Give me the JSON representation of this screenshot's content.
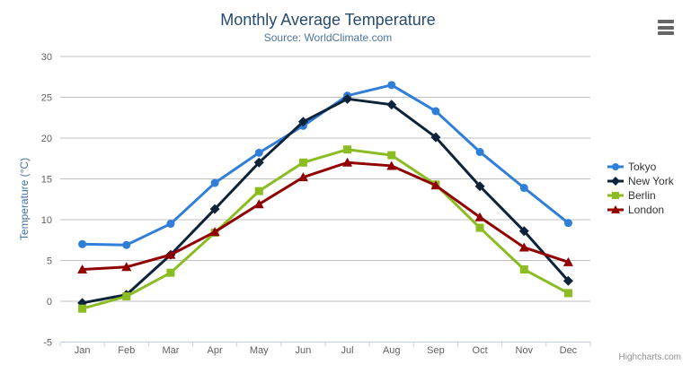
{
  "chart_data": {
    "type": "line",
    "title": "Monthly Average Temperature",
    "subtitle": "Source: WorldClimate.com",
    "categories": [
      "Jan",
      "Feb",
      "Mar",
      "Apr",
      "May",
      "Jun",
      "Jul",
      "Aug",
      "Sep",
      "Oct",
      "Nov",
      "Dec"
    ],
    "series": [
      {
        "name": "Tokyo",
        "color": "#2f7ed8",
        "marker": "circle",
        "values": [
          7.0,
          6.9,
          9.5,
          14.5,
          18.2,
          21.5,
          25.2,
          26.5,
          23.3,
          18.3,
          13.9,
          9.6
        ]
      },
      {
        "name": "New York",
        "color": "#0d233a",
        "marker": "diamond",
        "values": [
          -0.2,
          0.8,
          5.7,
          11.3,
          17.0,
          22.0,
          24.8,
          24.1,
          20.1,
          14.1,
          8.6,
          2.5
        ]
      },
      {
        "name": "Berlin",
        "color": "#8bbc21",
        "marker": "square",
        "values": [
          -0.9,
          0.6,
          3.5,
          8.4,
          13.5,
          17.0,
          18.6,
          17.9,
          14.3,
          9.0,
          3.9,
          1.0
        ]
      },
      {
        "name": "London",
        "color": "#910000",
        "marker": "triangle",
        "values": [
          3.9,
          4.2,
          5.7,
          8.5,
          11.9,
          15.2,
          17.0,
          16.6,
          14.2,
          10.3,
          6.6,
          4.8
        ]
      }
    ],
    "xlabel": "",
    "ylabel": "Temperature (°C)",
    "ylim": [
      -5,
      30
    ],
    "ytick_step": 5,
    "grid": true,
    "legend_position": "right",
    "colors": {
      "title": "#274b6d",
      "subtitle": "#4d759e",
      "axis_title": "#4572a7",
      "gridline": "#c0c0c0",
      "axis_line": "#c0d0e0",
      "tick_label": "#606060"
    }
  },
  "icons": {
    "context_menu": "hamburger-icon"
  },
  "credits": {
    "label": "Highcharts.com"
  }
}
